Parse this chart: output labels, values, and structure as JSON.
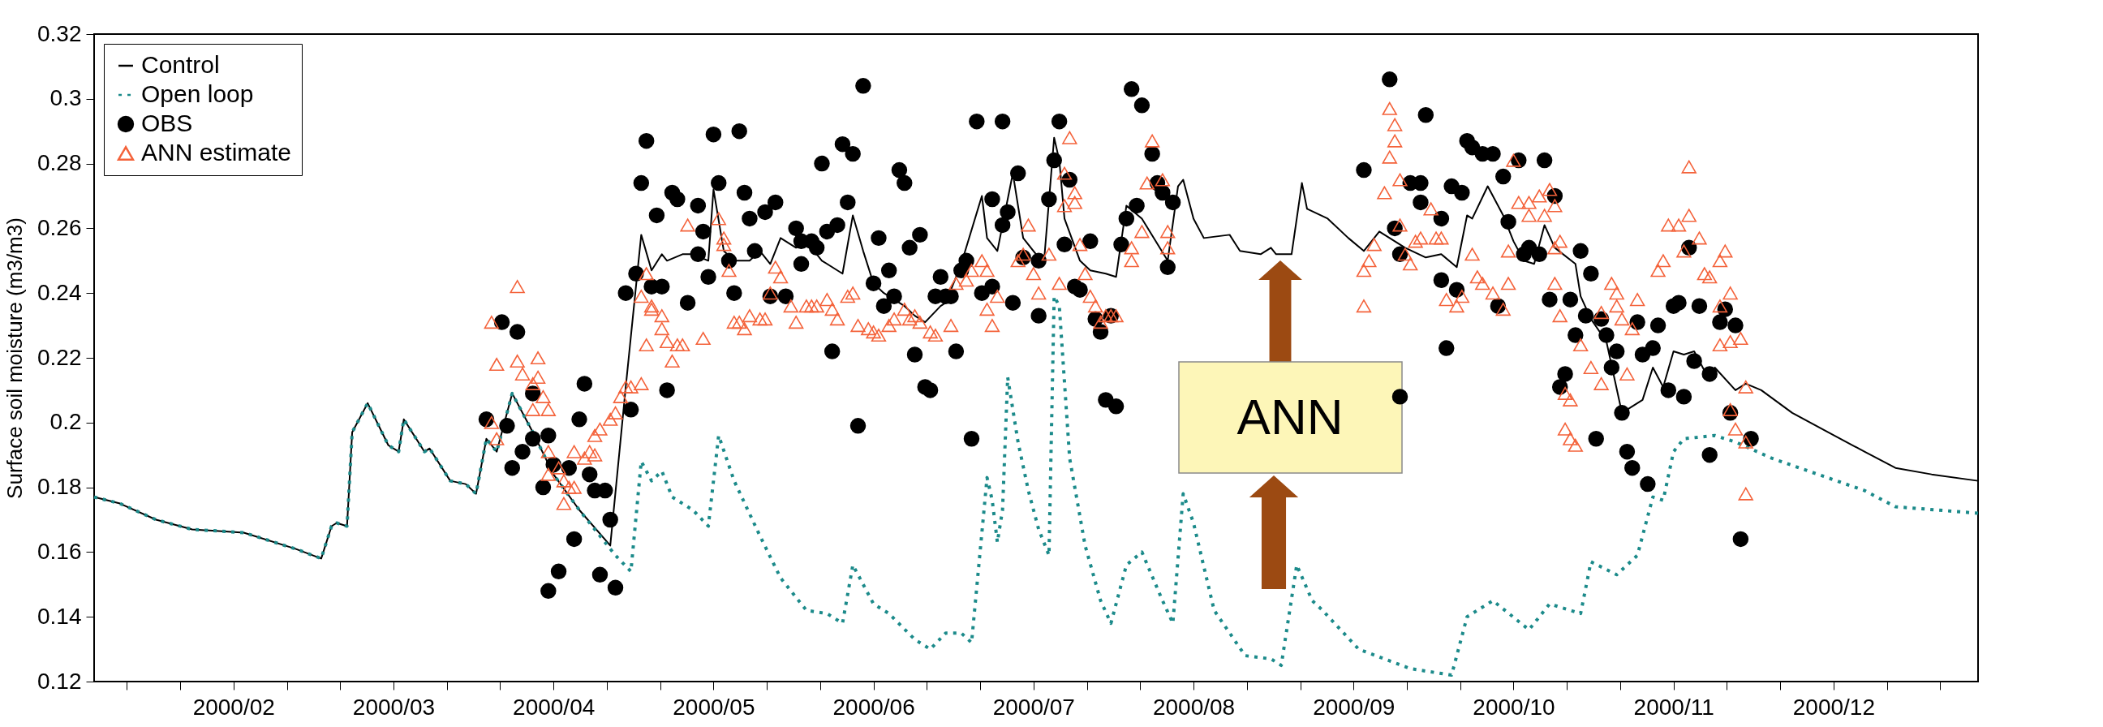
{
  "chart_data": {
    "type": "line",
    "ylabel": "Surface soil moisture (m3/m3)",
    "legend": "top left",
    "grid": false,
    "annotations": [
      "ANN"
    ],
    "xlim": [
      "2000-01-05",
      "2001-01-04"
    ],
    "xticks": [
      {
        "value": "2000-01-11T08:00",
        "label": null
      },
      {
        "value": "2000-01-21T16:00",
        "label": null
      },
      {
        "value": "2000-02-01",
        "label": "2000/02"
      },
      {
        "value": "2000-02-11T08:00",
        "label": null
      },
      {
        "value": "2000-02-21T16:00",
        "label": null
      },
      {
        "value": "2000-03-03",
        "label": "2000/03"
      },
      {
        "value": "2000-03-13T08:00",
        "label": null
      },
      {
        "value": "2000-03-23T16:00",
        "label": null
      },
      {
        "value": "2000-04-03",
        "label": "2000/04"
      },
      {
        "value": "2000-04-13T08:00",
        "label": null
      },
      {
        "value": "2000-04-23T16:00",
        "label": null
      },
      {
        "value": "2000-05-04",
        "label": "2000/05"
      },
      {
        "value": "2000-05-14T08:00",
        "label": null
      },
      {
        "value": "2000-05-24T16:00",
        "label": null
      },
      {
        "value": "2000-06-04",
        "label": "2000/06"
      },
      {
        "value": "2000-06-14T08:00",
        "label": null
      },
      {
        "value": "2000-06-24T16:00",
        "label": null
      },
      {
        "value": "2000-07-05",
        "label": "2000/07"
      },
      {
        "value": "2000-07-15T08:00",
        "label": null
      },
      {
        "value": "2000-07-25T16:00",
        "label": null
      },
      {
        "value": "2000-08-05",
        "label": "2000/08"
      },
      {
        "value": "2000-08-15T08:00",
        "label": null
      },
      {
        "value": "2000-08-25T16:00",
        "label": null
      },
      {
        "value": "2000-09-05",
        "label": "2000/09"
      },
      {
        "value": "2000-09-15T08:00",
        "label": null
      },
      {
        "value": "2000-09-25T16:00",
        "label": null
      },
      {
        "value": "2000-10-06",
        "label": "2000/10"
      },
      {
        "value": "2000-10-16T08:00",
        "label": null
      },
      {
        "value": "2000-10-26T16:00",
        "label": null
      },
      {
        "value": "2000-11-06",
        "label": "2000/11"
      },
      {
        "value": "2000-11-16T08:00",
        "label": null
      },
      {
        "value": "2000-11-26T16:00",
        "label": null
      },
      {
        "value": "2000-12-07",
        "label": "2000/12"
      },
      {
        "value": "2000-12-17T08:00",
        "label": null
      },
      {
        "value": "2000-12-27T16:00",
        "label": null
      }
    ],
    "ylim": [
      0.12,
      0.32
    ],
    "yticks": [
      0.12,
      0.14,
      0.16,
      0.18,
      0.2,
      0.22,
      0.24,
      0.26,
      0.28,
      0.3,
      0.32
    ],
    "series": [
      {
        "name": "Control",
        "color": "#000000",
        "line_style": "solid",
        "marker": "none",
        "x": [
          "2000-01-05",
          "2000-01-10",
          "2000-01-17",
          "2000-01-24",
          "2000-02-03",
          "2000-02-13",
          "2000-02-18",
          "2000-02-20",
          "2000-02-21",
          "2000-02-23",
          "2000-02-24",
          "2000-02-27",
          "2000-03-02",
          "2000-03-04",
          "2000-03-05",
          "2000-03-09",
          "2000-03-10",
          "2000-03-14",
          "2000-03-17",
          "2000-03-19",
          "2000-03-21",
          "2000-03-23",
          "2000-03-26",
          "2000-03-30",
          "2000-04-03",
          "2000-04-08",
          "2000-04-14",
          "2000-04-17",
          "2000-04-20",
          "2000-04-22",
          "2000-04-24",
          "2000-04-25",
          "2000-04-28",
          "2000-04-30",
          "2000-05-03",
          "2000-05-04",
          "2000-05-06",
          "2000-05-08",
          "2000-05-11",
          "2000-05-13",
          "2000-05-15",
          "2000-05-17",
          "2000-05-20",
          "2000-05-22",
          "2000-05-25",
          "2000-05-29",
          "2000-05-31",
          "2000-06-02",
          "2000-06-04",
          "2000-06-06",
          "2000-06-10",
          "2000-06-12",
          "2000-06-14",
          "2000-06-17",
          "2000-06-18",
          "2000-06-21",
          "2000-06-25",
          "2000-06-26",
          "2000-06-28",
          "2000-07-01",
          "2000-07-03",
          "2000-07-07",
          "2000-07-09",
          "2000-07-10",
          "2000-07-11",
          "2000-07-14",
          "2000-07-16",
          "2000-07-19",
          "2000-07-21",
          "2000-07-22",
          "2000-07-23",
          "2000-07-26",
          "2000-07-31",
          "2000-08-02",
          "2000-08-03",
          "2000-08-05",
          "2000-08-07",
          "2000-08-12",
          "2000-08-14",
          "2000-08-18",
          "2000-08-20",
          "2000-08-21",
          "2000-08-24",
          "2000-08-26",
          "2000-08-27",
          "2000-08-31",
          "2000-09-04",
          "2000-09-07",
          "2000-09-10",
          "2000-09-13",
          "2000-09-15",
          "2000-09-19",
          "2000-09-22",
          "2000-09-25",
          "2000-09-27",
          "2000-09-28",
          "2000-10-01",
          "2000-10-04",
          "2000-10-06",
          "2000-10-08",
          "2000-10-10",
          "2000-10-12",
          "2000-10-14",
          "2000-10-18",
          "2000-10-19",
          "2000-10-21",
          "2000-10-24",
          "2000-10-27",
          "2000-10-31",
          "2000-11-02",
          "2000-11-04",
          "2000-11-06",
          "2000-11-08",
          "2000-11-10",
          "2000-11-13",
          "2000-11-14",
          "2000-11-18",
          "2000-11-20",
          "2000-11-23",
          "2000-11-29",
          "2000-12-06",
          "2000-12-13",
          "2000-12-19",
          "2000-12-26",
          "2001-01-04"
        ],
        "values": [
          0.177,
          0.175,
          0.17,
          0.167,
          0.166,
          0.161,
          0.158,
          0.168,
          0.169,
          0.168,
          0.197,
          0.206,
          0.193,
          0.191,
          0.201,
          0.191,
          0.192,
          0.182,
          0.181,
          0.178,
          0.195,
          0.191,
          0.209,
          0.197,
          0.184,
          0.173,
          0.162,
          0.211,
          0.258,
          0.247,
          0.252,
          0.25,
          0.252,
          0.252,
          0.25,
          0.272,
          0.253,
          0.25,
          0.25,
          0.253,
          0.249,
          0.257,
          0.254,
          0.256,
          0.25,
          0.246,
          0.264,
          0.253,
          0.243,
          0.24,
          0.236,
          0.233,
          0.231,
          0.236,
          0.237,
          0.249,
          0.27,
          0.257,
          0.253,
          0.277,
          0.257,
          0.249,
          0.288,
          0.281,
          0.263,
          0.25,
          0.247,
          0.246,
          0.245,
          0.256,
          0.267,
          0.263,
          0.25,
          0.273,
          0.275,
          0.263,
          0.257,
          0.258,
          0.253,
          0.252,
          0.254,
          0.252,
          0.252,
          0.274,
          0.266,
          0.263,
          0.257,
          0.253,
          0.259,
          0.256,
          0.254,
          0.251,
          0.252,
          0.248,
          0.264,
          0.263,
          0.273,
          0.264,
          0.256,
          0.25,
          0.249,
          0.261,
          0.254,
          0.249,
          0.239,
          0.232,
          0.225,
          0.203,
          0.207,
          0.217,
          0.211,
          0.222,
          0.221,
          0.222,
          0.213,
          0.217,
          0.21,
          0.212,
          0.21,
          0.203,
          0.197,
          0.191,
          0.186,
          0.184,
          0.182
        ]
      },
      {
        "name": "Open loop",
        "color": "#1b8a8a",
        "line_style": "dotted",
        "marker": "none",
        "x": [
          "2000-01-05",
          "2000-01-10",
          "2000-01-17",
          "2000-01-24",
          "2000-02-03",
          "2000-02-13",
          "2000-02-18",
          "2000-02-20",
          "2000-02-21",
          "2000-02-23",
          "2000-02-24",
          "2000-02-27",
          "2000-03-02",
          "2000-03-04",
          "2000-03-05",
          "2000-03-09",
          "2000-03-10",
          "2000-03-14",
          "2000-03-17",
          "2000-03-19",
          "2000-03-21",
          "2000-03-23",
          "2000-03-26",
          "2000-03-30",
          "2000-04-03",
          "2000-04-08",
          "2000-04-15",
          "2000-04-18",
          "2000-04-20",
          "2000-04-22",
          "2000-04-24",
          "2000-04-26",
          "2000-04-30",
          "2000-05-03",
          "2000-05-05",
          "2000-05-08",
          "2000-05-13",
          "2000-05-17",
          "2000-05-22",
          "2000-05-26",
          "2000-05-29",
          "2000-05-31",
          "2000-06-04",
          "2000-06-07",
          "2000-06-12",
          "2000-06-15",
          "2000-06-18",
          "2000-06-21",
          "2000-06-23",
          "2000-06-26",
          "2000-06-27",
          "2000-06-28",
          "2000-06-29",
          "2000-06-30",
          "2000-07-02",
          "2000-07-04",
          "2000-07-06",
          "2000-07-08",
          "2000-07-09",
          "2000-07-10",
          "2000-07-12",
          "2000-07-15",
          "2000-07-18",
          "2000-07-20",
          "2000-07-23",
          "2000-07-26",
          "2000-07-30",
          "2000-08-01",
          "2000-08-03",
          "2000-08-05",
          "2000-08-09",
          "2000-08-15",
          "2000-08-20",
          "2000-08-22",
          "2000-08-25",
          "2000-08-28",
          "2000-08-30",
          "2000-09-06",
          "2000-09-16",
          "2000-09-24",
          "2000-09-27",
          "2000-10-02",
          "2000-10-09",
          "2000-10-13",
          "2000-10-19",
          "2000-10-21",
          "2000-10-26",
          "2000-10-30",
          "2000-11-02",
          "2000-11-04",
          "2000-11-06",
          "2000-11-08",
          "2000-11-14",
          "2000-11-18",
          "2000-11-25",
          "2000-12-04",
          "2000-12-13",
          "2000-12-19",
          "2001-01-04"
        ],
        "values": [
          0.177,
          0.175,
          0.17,
          0.167,
          0.166,
          0.161,
          0.158,
          0.168,
          0.169,
          0.168,
          0.197,
          0.206,
          0.193,
          0.191,
          0.201,
          0.191,
          0.192,
          0.182,
          0.181,
          0.178,
          0.195,
          0.191,
          0.209,
          0.197,
          0.184,
          0.173,
          0.159,
          0.154,
          0.188,
          0.182,
          0.185,
          0.177,
          0.173,
          0.168,
          0.196,
          0.182,
          0.165,
          0.152,
          0.142,
          0.141,
          0.138,
          0.156,
          0.144,
          0.141,
          0.133,
          0.13,
          0.135,
          0.135,
          0.132,
          0.183,
          0.176,
          0.163,
          0.173,
          0.214,
          0.194,
          0.179,
          0.167,
          0.159,
          0.239,
          0.236,
          0.189,
          0.162,
          0.145,
          0.138,
          0.156,
          0.16,
          0.145,
          0.138,
          0.178,
          0.169,
          0.142,
          0.128,
          0.127,
          0.125,
          0.156,
          0.145,
          0.142,
          0.13,
          0.124,
          0.122,
          0.14,
          0.145,
          0.136,
          0.144,
          0.141,
          0.157,
          0.153,
          0.159,
          0.177,
          0.176,
          0.191,
          0.195,
          0.196,
          0.194,
          0.189,
          0.184,
          0.179,
          0.174,
          0.172
        ]
      },
      {
        "name": "OBS",
        "type": "scatter",
        "color": "#000000",
        "marker": "circle",
        "x": [
          "2000-03-21",
          "2000-03-24",
          "2000-03-27",
          "2000-03-25",
          "2000-03-26",
          "2000-03-28",
          "2000-03-30",
          "2000-03-30",
          "2000-04-01",
          "2000-04-02",
          "2000-04-02",
          "2000-04-03",
          "2000-04-04",
          "2000-04-06",
          "2000-04-07",
          "2000-04-08",
          "2000-04-09",
          "2000-04-10",
          "2000-04-11",
          "2000-04-12",
          "2000-04-13",
          "2000-04-14",
          "2000-04-15",
          "2000-04-17",
          "2000-04-18",
          "2000-04-19",
          "2000-04-20",
          "2000-04-21",
          "2000-04-22",
          "2000-04-23",
          "2000-04-24",
          "2000-04-25",
          "2000-04-26",
          "2000-04-27",
          "2000-04-29",
          "2000-05-01",
          "2000-05-01",
          "2000-05-02",
          "2000-05-03",
          "2000-05-04",
          "2000-05-05",
          "2000-05-07",
          "2000-05-08",
          "2000-05-09",
          "2000-05-10",
          "2000-05-11",
          "2000-05-12",
          "2000-05-14",
          "2000-05-15",
          "2000-05-16",
          "2000-05-18",
          "2000-05-20",
          "2000-05-21",
          "2000-05-21",
          "2000-05-23",
          "2000-05-24",
          "2000-05-25",
          "2000-05-26",
          "2000-05-27",
          "2000-05-28",
          "2000-05-29",
          "2000-05-30",
          "2000-05-31",
          "2000-06-01",
          "2000-06-02",
          "2000-06-04",
          "2000-06-05",
          "2000-06-06",
          "2000-06-07",
          "2000-06-08",
          "2000-06-09",
          "2000-06-10",
          "2000-06-11",
          "2000-06-12",
          "2000-06-13",
          "2000-06-14",
          "2000-06-15",
          "2000-06-16",
          "2000-06-17",
          "2000-06-18",
          "2000-06-19",
          "2000-06-20",
          "2000-06-21",
          "2000-06-22",
          "2000-06-23",
          "2000-06-24",
          "2000-06-25",
          "2000-06-27",
          "2000-06-27",
          "2000-06-29",
          "2000-06-29",
          "2000-06-30",
          "2000-07-01",
          "2000-07-02",
          "2000-07-03",
          "2000-07-06",
          "2000-07-06",
          "2000-07-08",
          "2000-07-09",
          "2000-07-10",
          "2000-07-11",
          "2000-07-12",
          "2000-07-13",
          "2000-07-14",
          "2000-07-16",
          "2000-07-17",
          "2000-07-18",
          "2000-07-19",
          "2000-07-20",
          "2000-07-21",
          "2000-07-22",
          "2000-07-23",
          "2000-07-24",
          "2000-07-25",
          "2000-07-26",
          "2000-07-28",
          "2000-07-29",
          "2000-07-30",
          "2000-07-31",
          "2000-08-01",
          "2000-09-07",
          "2000-09-12",
          "2000-09-13",
          "2000-09-14",
          "2000-09-16",
          "2000-09-18",
          "2000-09-18",
          "2000-09-19",
          "2000-09-22",
          "2000-09-22",
          "2000-09-23",
          "2000-09-24",
          "2000-09-25",
          "2000-09-26",
          "2000-09-14",
          "2000-09-27",
          "2000-09-28",
          "2000-09-30",
          "2000-10-02",
          "2000-10-03",
          "2000-10-04",
          "2000-10-05",
          "2000-10-07",
          "2000-10-08",
          "2000-10-09",
          "2000-10-11",
          "2000-10-12",
          "2000-10-13",
          "2000-10-14",
          "2000-10-15",
          "2000-10-16",
          "2000-10-17",
          "2000-10-18",
          "2000-10-19",
          "2000-10-20",
          "2000-10-21",
          "2000-10-22",
          "2000-10-23",
          "2000-10-24",
          "2000-10-25",
          "2000-10-26",
          "2000-10-27",
          "2000-10-28",
          "2000-10-29",
          "2000-10-30",
          "2000-10-31",
          "2000-11-01",
          "2000-11-02",
          "2000-11-03",
          "2000-11-05",
          "2000-11-06",
          "2000-11-07",
          "2000-11-08",
          "2000-11-09",
          "2000-11-10",
          "2000-11-11",
          "2000-11-13",
          "2000-11-13",
          "2000-11-15",
          "2000-11-16",
          "2000-11-17",
          "2000-11-18",
          "2000-11-19",
          "2000-11-21"
        ],
        "values": [
          0.201,
          0.231,
          0.228,
          0.199,
          0.186,
          0.191,
          0.195,
          0.209,
          0.18,
          0.148,
          0.196,
          0.187,
          0.154,
          0.186,
          0.164,
          0.201,
          0.212,
          0.184,
          0.179,
          0.153,
          0.179,
          0.17,
          0.149,
          0.24,
          0.204,
          0.246,
          0.274,
          0.287,
          0.242,
          0.264,
          0.242,
          0.21,
          0.271,
          0.269,
          0.237,
          0.252,
          0.267,
          0.259,
          0.245,
          0.289,
          0.274,
          0.25,
          0.24,
          0.29,
          0.271,
          0.263,
          0.253,
          0.265,
          0.239,
          0.268,
          0.239,
          0.26,
          0.256,
          0.249,
          0.256,
          0.254,
          0.28,
          0.259,
          0.222,
          0.261,
          0.286,
          0.268,
          0.283,
          0.199,
          0.304,
          0.243,
          0.257,
          0.236,
          0.247,
          0.239,
          0.278,
          0.274,
          0.254,
          0.221,
          0.258,
          0.211,
          0.21,
          0.239,
          0.245,
          0.239,
          0.239,
          0.222,
          0.247,
          0.25,
          0.195,
          0.293,
          0.24,
          0.242,
          0.269,
          0.261,
          0.293,
          0.265,
          0.237,
          0.277,
          0.251,
          0.25,
          0.233,
          0.269,
          0.281,
          0.293,
          0.255,
          0.275,
          0.242,
          0.241,
          0.256,
          0.232,
          0.228,
          0.207,
          0.233,
          0.205,
          0.255,
          0.263,
          0.303,
          0.267,
          0.298,
          0.283,
          0.274,
          0.271,
          0.248,
          0.268,
          0.278,
          0.306,
          0.26,
          0.252,
          0.274,
          0.274,
          0.268,
          0.295,
          0.244,
          0.263,
          0.223,
          0.273,
          0.241,
          0.271,
          0.208,
          0.287,
          0.285,
          0.283,
          0.283,
          0.236,
          0.276,
          0.262,
          0.281,
          0.252,
          0.254,
          0.252,
          0.281,
          0.238,
          0.27,
          0.211,
          0.215,
          0.238,
          0.227,
          0.253,
          0.233,
          0.246,
          0.195,
          0.232,
          0.227,
          0.217,
          0.222,
          0.203,
          0.191,
          0.186,
          0.231,
          0.221,
          0.181,
          0.223,
          0.23,
          0.21,
          0.236,
          0.237,
          0.208,
          0.254,
          0.219,
          0.236,
          0.215,
          0.19,
          0.231,
          0.235,
          0.203,
          0.23,
          0.164,
          0.195
        ]
      },
      {
        "name": "ANN estimate",
        "type": "scatter",
        "color": "#f4623a",
        "marker": "triangle",
        "x": [
          "2000-03-22",
          "2000-03-27",
          "2000-03-23",
          "2000-03-27",
          "2000-03-28",
          "2000-03-30",
          "2000-03-31",
          "2000-03-31",
          "2000-04-01",
          "2000-04-02",
          "2000-03-30",
          "2000-03-22",
          "2000-03-23",
          "2000-04-02",
          "2000-04-02",
          "2000-04-04",
          "2000-04-05",
          "2000-04-06",
          "2000-04-05",
          "2000-04-07",
          "2000-04-07",
          "2000-04-09",
          "2000-04-10",
          "2000-04-11",
          "2000-04-11",
          "2000-04-12",
          "2000-04-14",
          "2000-04-15",
          "2000-04-16",
          "2000-04-17",
          "2000-04-18",
          "2000-04-20",
          "2000-04-21",
          "2000-04-20",
          "2000-04-22",
          "2000-04-22",
          "2000-04-24",
          "2000-04-24",
          "2000-04-21",
          "2000-04-25",
          "2000-04-26",
          "2000-04-27",
          "2000-04-28",
          "2000-04-29",
          "2000-05-02",
          "2000-05-05",
          "2000-05-06",
          "2000-05-06",
          "2000-05-07",
          "2000-05-08",
          "2000-05-09",
          "2000-05-10",
          "2000-05-11",
          "2000-05-13",
          "2000-05-14",
          "2000-05-15",
          "2000-05-16",
          "2000-05-17",
          "2000-05-19",
          "2000-05-20",
          "2000-05-22",
          "2000-05-23",
          "2000-05-24",
          "2000-05-26",
          "2000-05-27",
          "2000-05-28",
          "2000-05-30",
          "2000-05-31",
          "2000-06-01",
          "2000-06-03",
          "2000-06-04",
          "2000-06-05",
          "2000-06-07",
          "2000-06-08",
          "2000-06-10",
          "2000-06-11",
          "2000-06-12",
          "2000-06-13",
          "2000-06-15",
          "2000-06-16",
          "2000-06-19",
          "2000-06-20",
          "2000-06-22",
          "2000-06-23",
          "2000-06-25",
          "2000-06-26",
          "2000-06-26",
          "2000-06-27",
          "2000-06-28",
          "2000-07-02",
          "2000-07-03",
          "2000-07-04",
          "2000-07-05",
          "2000-07-06",
          "2000-07-08",
          "2000-07-10",
          "2000-07-12",
          "2000-07-11",
          "2000-07-13",
          "2000-07-13",
          "2000-07-11",
          "2000-07-14",
          "2000-07-15",
          "2000-07-16",
          "2000-07-17",
          "2000-07-18",
          "2000-07-19",
          "2000-07-20",
          "2000-07-21",
          "2000-07-24",
          "2000-07-24",
          "2000-07-26",
          "2000-07-27",
          "2000-07-28",
          "2000-07-30",
          "2000-07-31",
          "2000-07-31",
          "2000-09-07",
          "2000-09-07",
          "2000-09-08",
          "2000-09-09",
          "2000-09-11",
          "2000-09-12",
          "2000-09-13",
          "2000-09-13",
          "2000-09-12",
          "2000-09-14",
          "2000-09-14",
          "2000-09-15",
          "2000-09-16",
          "2000-09-17",
          "2000-09-18",
          "2000-09-20",
          "2000-09-21",
          "2000-09-22",
          "2000-09-23",
          "2000-09-25",
          "2000-09-26",
          "2000-09-28",
          "2000-09-29",
          "2000-09-30",
          "2000-10-02",
          "2000-10-04",
          "2000-10-05",
          "2000-10-05",
          "2000-10-06",
          "2000-10-07",
          "2000-10-09",
          "2000-10-09",
          "2000-10-11",
          "2000-10-12",
          "2000-10-13",
          "2000-10-14",
          "2000-10-14",
          "2000-10-15",
          "2000-10-14",
          "2000-10-15",
          "2000-10-16",
          "2000-10-17",
          "2000-10-16",
          "2000-10-17",
          "2000-10-18",
          "2000-10-19",
          "2000-10-21",
          "2000-10-23",
          "2000-10-23",
          "2000-10-25",
          "2000-10-26",
          "2000-10-26",
          "2000-10-27",
          "2000-10-30",
          "2000-10-29",
          "2000-10-28",
          "2000-11-03",
          "2000-11-04",
          "2000-11-05",
          "2000-11-07",
          "2000-11-08",
          "2000-11-09",
          "2000-11-09",
          "2000-11-11",
          "2000-11-12",
          "2000-11-13",
          "2000-11-15",
          "2000-11-16",
          "2000-11-17",
          "2000-11-15",
          "2000-11-15",
          "2000-11-17",
          "2000-11-19",
          "2000-11-17",
          "2000-11-18",
          "2000-11-20",
          "2000-11-20",
          "2000-11-20"
        ],
        "values": [
          0.231,
          0.242,
          0.218,
          0.219,
          0.215,
          0.212,
          0.214,
          0.22,
          0.208,
          0.204,
          0.204,
          0.2,
          0.195,
          0.191,
          0.184,
          0.186,
          0.182,
          0.18,
          0.175,
          0.18,
          0.191,
          0.189,
          0.191,
          0.19,
          0.196,
          0.198,
          0.201,
          0.203,
          0.208,
          0.211,
          0.211,
          0.212,
          0.246,
          0.239,
          0.236,
          0.235,
          0.233,
          0.229,
          0.224,
          0.225,
          0.219,
          0.224,
          0.224,
          0.261,
          0.226,
          0.263,
          0.257,
          0.255,
          0.247,
          0.231,
          0.231,
          0.229,
          0.233,
          0.232,
          0.232,
          0.24,
          0.248,
          0.245,
          0.236,
          0.231,
          0.236,
          0.236,
          0.236,
          0.238,
          0.235,
          0.232,
          0.239,
          0.24,
          0.23,
          0.229,
          0.228,
          0.227,
          0.23,
          0.232,
          0.235,
          0.232,
          0.233,
          0.231,
          0.228,
          0.227,
          0.23,
          0.243,
          0.244,
          0.247,
          0.25,
          0.247,
          0.235,
          0.23,
          0.239,
          0.25,
          0.252,
          0.261,
          0.246,
          0.24,
          0.252,
          0.243,
          0.288,
          0.277,
          0.271,
          0.268,
          0.267,
          0.255,
          0.246,
          0.239,
          0.236,
          0.231,
          0.233,
          0.233,
          0.233,
          0.25,
          0.254,
          0.259,
          0.274,
          0.287,
          0.275,
          0.259,
          0.254,
          0.236,
          0.247,
          0.25,
          0.255,
          0.271,
          0.282,
          0.287,
          0.292,
          0.297,
          0.275,
          0.261,
          0.252,
          0.249,
          0.256,
          0.257,
          0.266,
          0.257,
          0.257,
          0.238,
          0.236,
          0.239,
          0.252,
          0.245,
          0.243,
          0.24,
          0.235,
          0.243,
          0.253,
          0.281,
          0.268,
          0.264,
          0.268,
          0.27,
          0.264,
          0.272,
          0.267,
          0.254,
          0.256,
          0.243,
          0.233,
          0.209,
          0.207,
          0.198,
          0.195,
          0.193,
          0.224,
          0.217,
          0.212,
          0.234,
          0.243,
          0.24,
          0.236,
          0.232,
          0.238,
          0.229,
          0.215,
          0.247,
          0.25,
          0.261,
          0.261,
          0.253,
          0.264,
          0.279,
          0.257,
          0.246,
          0.245,
          0.25,
          0.253,
          0.24,
          0.236,
          0.224,
          0.225,
          0.226,
          0.204,
          0.198,
          0.194,
          0.211,
          0.178
        ]
      }
    ]
  }
}
